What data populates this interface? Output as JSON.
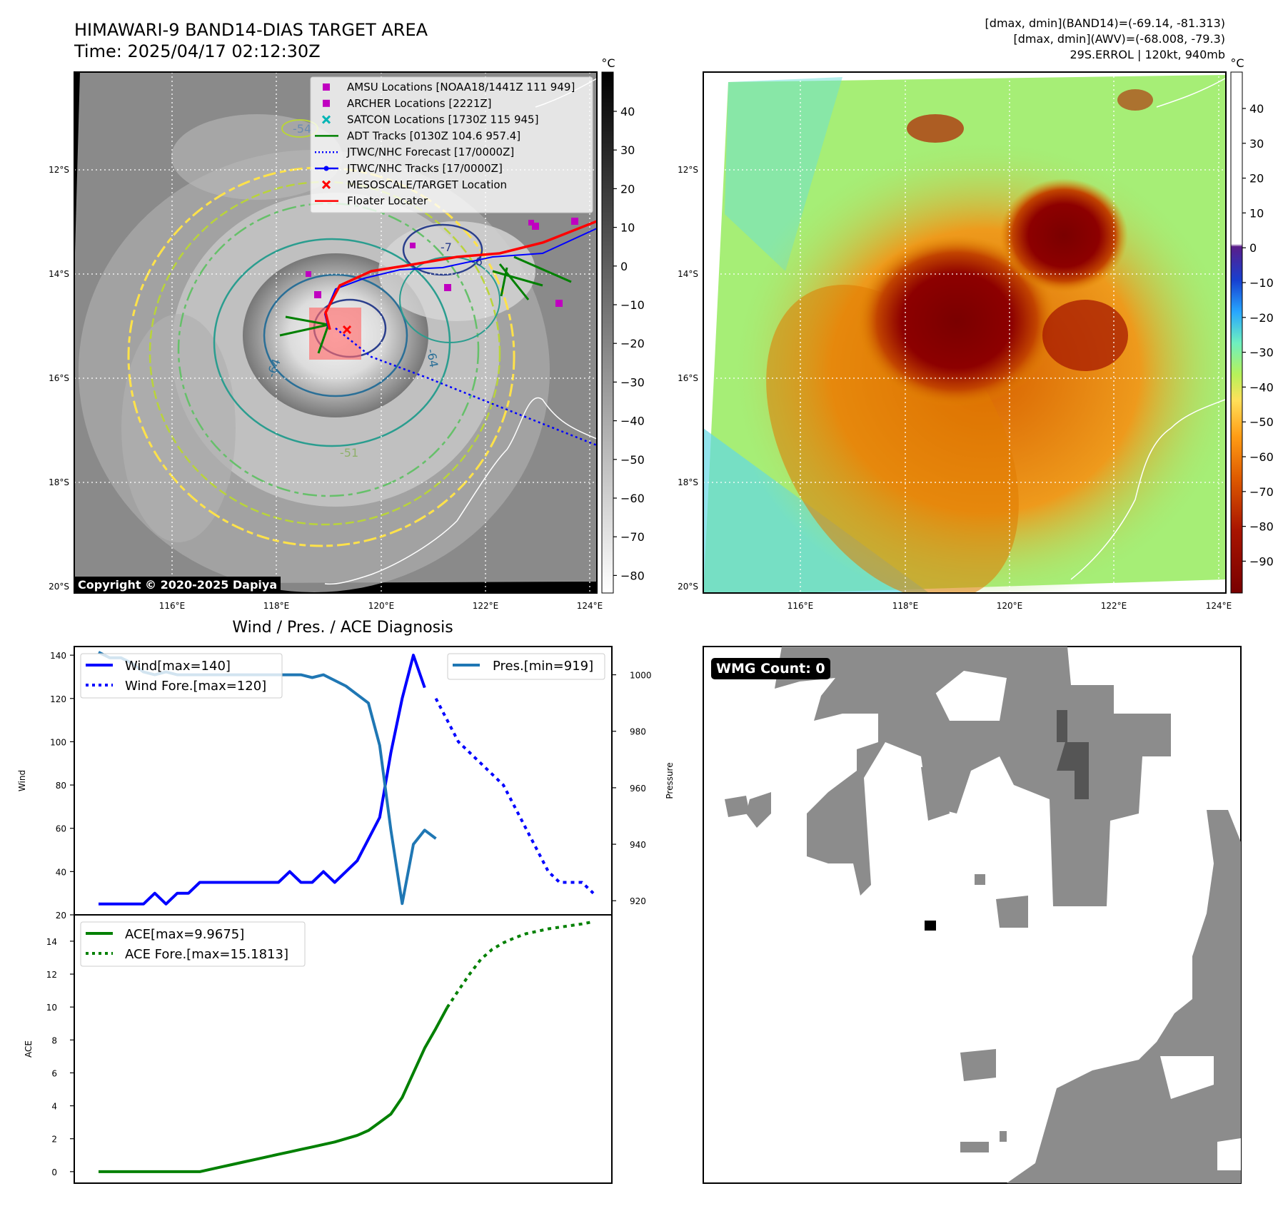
{
  "header": {
    "title": "HIMAWARI-9 BAND14-DIAS TARGET AREA",
    "time": "Time: 2025/04/17 02:12:30Z",
    "info_line1": "[dmax, dmin](BAND14)=(-69.14, -81.313)",
    "info_line2": "[dmax, dmin](AWV)=(-68.008, -79.3)",
    "info_line3": "29S.ERROL | 120kt, 940mb",
    "copyright": "Copyright © 2020-2025 Dapiya"
  },
  "colors": {
    "wind": "#0000ff",
    "pressure": "#1f77b4",
    "ace": "#008000",
    "amsu": "#c000c0",
    "satcon": "#00b5b5",
    "target": "#ff0000",
    "adt": "#008000",
    "floater": "#ff0000"
  },
  "map": {
    "lat_labels": [
      "12°S",
      "14°S",
      "16°S",
      "18°S",
      "20°S"
    ],
    "lon_labels": [
      "116°E",
      "118°E",
      "120°E",
      "122°E",
      "124°E"
    ],
    "contour_labels": [
      "-54",
      "-64",
      "-64",
      "-51",
      "-7",
      "-6"
    ],
    "legend": [
      {
        "label": "AMSU Locations [NOAA18/1441Z 111 949]",
        "marker": "square",
        "color": "#c000c0"
      },
      {
        "label": "ARCHER Locations [2221Z]",
        "marker": "square",
        "color": "#c000c0"
      },
      {
        "label": "SATCON Locations [1730Z 115 945]",
        "marker": "x",
        "color": "#00b5b5"
      },
      {
        "label": "ADT Tracks [0130Z 104.6 957.4]",
        "marker": "line",
        "color": "#008000"
      },
      {
        "label": "JTWC/NHC Forecast [17/0000Z]",
        "marker": "dotted",
        "color": "#0000ff"
      },
      {
        "label": "JTWC/NHC Tracks [17/0000Z]",
        "marker": "line-dot",
        "color": "#0000ff"
      },
      {
        "label": "MESOSCALE/TARGET Location",
        "marker": "x",
        "color": "#ff0000"
      },
      {
        "label": "Floater Locater",
        "marker": "line",
        "color": "#ff0000"
      }
    ],
    "colorbar1": {
      "unit": "°C",
      "ticks": [
        "40",
        "30",
        "20",
        "10",
        "0",
        "−10",
        "−20",
        "−30",
        "−40",
        "−50",
        "−60",
        "−70",
        "−80"
      ]
    },
    "colorbar2": {
      "unit": "°C",
      "ticks": [
        "40",
        "30",
        "20",
        "10",
        "0",
        "−10",
        "−20",
        "−30",
        "−40",
        "−50",
        "−60",
        "−70",
        "−80",
        "−90"
      ]
    }
  },
  "wmg": {
    "label": "WMG Count: 0"
  },
  "chart_data": [
    {
      "type": "line",
      "title": "Wind / Pres. / ACE Diagnosis",
      "xlabel": "",
      "ylabel": "Wind",
      "ylabel_right": "Pressure",
      "ylim": [
        20,
        144
      ],
      "ylim_right": [
        915,
        1010
      ],
      "yticks": [
        20,
        40,
        60,
        80,
        100,
        120,
        140
      ],
      "yticks_right": [
        920,
        940,
        960,
        980,
        1000
      ],
      "x_range": [
        0,
        30
      ],
      "series": [
        {
          "name": "Wind[max=140]",
          "axis": "left",
          "style": "solid",
          "color": "#0000ff",
          "x": [
            0,
            1,
            2,
            3,
            4,
            5,
            6,
            7,
            8,
            9,
            10,
            11,
            12,
            13,
            14,
            15,
            16,
            17,
            18,
            19,
            20,
            21,
            22,
            23,
            24,
            25,
            26,
            27,
            28,
            29
          ],
          "values": [
            25,
            25,
            25,
            25,
            25,
            30,
            25,
            30,
            30,
            35,
            35,
            35,
            35,
            35,
            35,
            35,
            35,
            40,
            35,
            35,
            40,
            35,
            40,
            45,
            55,
            65,
            95,
            120,
            140,
            125
          ]
        },
        {
          "name": "Wind Fore.[max=120]",
          "axis": "left",
          "style": "dotted",
          "color": "#0000ff",
          "x": [
            30,
            31,
            32,
            33,
            34,
            35,
            36,
            37,
            38,
            39,
            40,
            41,
            42,
            43,
            44
          ],
          "values": [
            120,
            110,
            100,
            95,
            90,
            85,
            80,
            70,
            60,
            50,
            40,
            35,
            35,
            35,
            30
          ]
        },
        {
          "name": "Pres.[min=919]",
          "axis": "right",
          "style": "solid",
          "color": "#1f77b4",
          "x": [
            0,
            1,
            2,
            3,
            4,
            5,
            6,
            7,
            8,
            9,
            10,
            11,
            12,
            13,
            14,
            15,
            16,
            17,
            18,
            19,
            20,
            21,
            22,
            23,
            24,
            25,
            26,
            27,
            28,
            29,
            30
          ],
          "values": [
            1008,
            1006,
            1006,
            1004,
            1001,
            1000,
            1001,
            1000,
            1000,
            1000,
            1000,
            1000,
            1000,
            1000,
            1000,
            1000,
            1000,
            1000,
            1000,
            999,
            1000,
            998,
            996,
            993,
            990,
            975,
            945,
            919,
            940,
            945,
            942
          ]
        }
      ]
    },
    {
      "type": "line",
      "title": "",
      "xlabel": "",
      "ylabel": "ACE",
      "ylim": [
        -0.7,
        15.6
      ],
      "yticks": [
        0,
        2,
        4,
        6,
        8,
        10,
        12,
        14
      ],
      "x_range": [
        0,
        30
      ],
      "series": [
        {
          "name": "ACE[max=9.9675]",
          "style": "solid",
          "color": "#008000",
          "x": [
            0,
            1,
            2,
            3,
            4,
            5,
            6,
            7,
            8,
            9,
            10,
            11,
            12,
            13,
            14,
            15,
            16,
            17,
            18,
            19,
            20,
            21,
            22,
            23,
            24,
            25,
            26,
            27,
            28,
            29,
            30,
            31
          ],
          "values": [
            0,
            0,
            0,
            0,
            0,
            0,
            0,
            0,
            0,
            0,
            0.15,
            0.3,
            0.45,
            0.6,
            0.75,
            0.9,
            1.05,
            1.2,
            1.35,
            1.5,
            1.65,
            1.8,
            2.0,
            2.2,
            2.5,
            3.0,
            3.5,
            4.5,
            6.0,
            7.5,
            8.7,
            9.97
          ]
        },
        {
          "name": "ACE Fore.[max=15.1813]",
          "style": "dotted",
          "color": "#008000",
          "x": [
            31,
            32,
            33,
            34,
            35,
            36,
            37,
            38,
            39,
            40,
            41,
            42,
            43,
            44
          ],
          "values": [
            9.97,
            11.0,
            12.0,
            12.9,
            13.5,
            13.9,
            14.2,
            14.45,
            14.6,
            14.75,
            14.85,
            14.95,
            15.05,
            15.18
          ]
        }
      ]
    }
  ]
}
